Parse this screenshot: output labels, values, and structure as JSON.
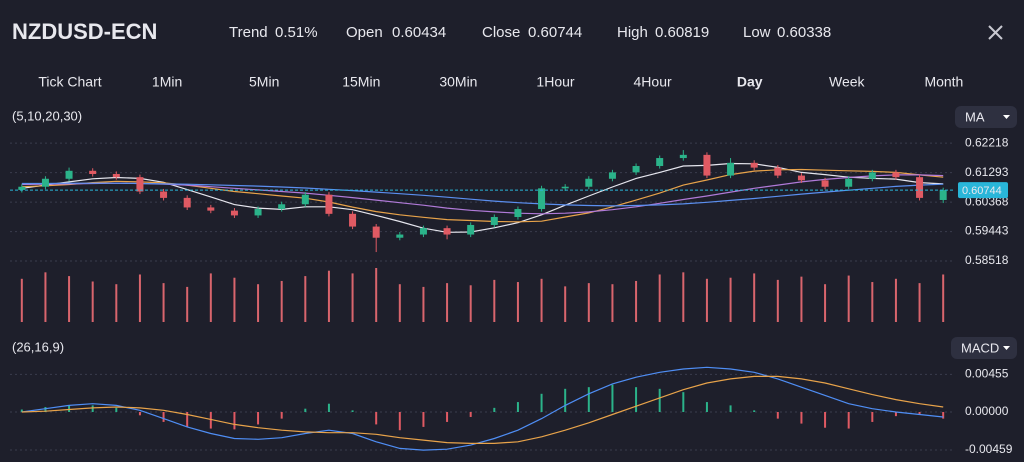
{
  "header": {
    "symbol": "NZDUSD-ECN",
    "stats": [
      {
        "label": "Trend",
        "value": "0.51%"
      },
      {
        "label": "Open",
        "value": "0.60434"
      },
      {
        "label": "Close",
        "value": "0.60744"
      },
      {
        "label": "High",
        "value": "0.60819"
      },
      {
        "label": "Low",
        "value": "0.60338"
      }
    ]
  },
  "tabs": [
    "Tick Chart",
    "1Min",
    "5Min",
    "15Min",
    "30Min",
    "1Hour",
    "4Hour",
    "Day",
    "Week",
    "Month"
  ],
  "active_tab": 7,
  "chart_data": [
    {
      "type": "candlestick",
      "label": "(5,10,20,30)",
      "indicator": "MA",
      "up_color": "#2bb38a",
      "down_color": "#e05a63",
      "ylim": [
        0.583,
        0.6263
      ],
      "yticks": [
        0.62218,
        0.61293,
        0.60368,
        0.59443,
        0.58518
      ],
      "grid": true,
      "last_price": 0.60744,
      "last_price_color": "#29b6d9",
      "open": [
        0.6075,
        0.6085,
        0.611,
        0.6135,
        0.6125,
        0.6115,
        0.607,
        0.605,
        0.602,
        0.601,
        0.5995,
        0.6015,
        0.603,
        0.606,
        0.6,
        0.596,
        0.5925,
        0.5935,
        0.5955,
        0.5935,
        0.5965,
        0.599,
        0.6015,
        0.608,
        0.6085,
        0.611,
        0.613,
        0.615,
        0.6175,
        0.6185,
        0.612,
        0.616,
        0.6145,
        0.612,
        0.6105,
        0.6085,
        0.611,
        0.613,
        0.6115,
        0.60434
      ],
      "high": [
        0.6093,
        0.6118,
        0.6145,
        0.6143,
        0.6133,
        0.6123,
        0.6078,
        0.6058,
        0.6028,
        0.6018,
        0.6023,
        0.6038,
        0.6068,
        0.6068,
        0.6008,
        0.5968,
        0.5943,
        0.5963,
        0.5963,
        0.5973,
        0.5998,
        0.6023,
        0.6088,
        0.6093,
        0.6118,
        0.6138,
        0.6158,
        0.6183,
        0.62,
        0.6193,
        0.6175,
        0.6168,
        0.6153,
        0.6128,
        0.6113,
        0.6118,
        0.6138,
        0.6138,
        0.6123,
        0.60819
      ],
      "low": [
        0.6067,
        0.6077,
        0.6102,
        0.6117,
        0.6107,
        0.6062,
        0.6042,
        0.6012,
        0.6002,
        0.5987,
        0.5987,
        0.6007,
        0.6022,
        0.5992,
        0.5952,
        0.588,
        0.5917,
        0.5927,
        0.592,
        0.5927,
        0.5957,
        0.5982,
        0.6007,
        0.6072,
        0.6077,
        0.6102,
        0.6122,
        0.6142,
        0.6167,
        0.6112,
        0.6112,
        0.6137,
        0.6112,
        0.6097,
        0.6077,
        0.6077,
        0.6102,
        0.6107,
        0.6042,
        0.60338
      ],
      "close": [
        0.6085,
        0.611,
        0.6135,
        0.6125,
        0.6115,
        0.607,
        0.605,
        0.602,
        0.601,
        0.5995,
        0.6015,
        0.603,
        0.606,
        0.6,
        0.596,
        0.5925,
        0.5935,
        0.5955,
        0.5935,
        0.5965,
        0.599,
        0.6015,
        0.608,
        0.6085,
        0.611,
        0.613,
        0.615,
        0.6175,
        0.6185,
        0.612,
        0.616,
        0.6145,
        0.612,
        0.6105,
        0.6085,
        0.611,
        0.613,
        0.6115,
        0.605,
        0.60744
      ],
      "series": [
        {
          "color": "#e6e6ee",
          "values": [
            0.608,
            0.609,
            0.61,
            0.611,
            0.6114,
            0.6111,
            0.6099,
            0.6076,
            0.6053,
            0.6029,
            0.6018,
            0.6014,
            0.6022,
            0.6022,
            0.6013,
            0.5995,
            0.5976,
            0.5955,
            0.5942,
            0.5943,
            0.5956,
            0.5972,
            0.5997,
            0.6027,
            0.6056,
            0.6084,
            0.6111,
            0.613,
            0.615,
            0.6152,
            0.6158,
            0.6157,
            0.6146,
            0.613,
            0.6123,
            0.6115,
            0.6111,
            0.6109,
            0.6098,
            0.6094
          ]
        },
        {
          "color": "#e8a34a",
          "values": [
            0.6085,
            0.6088,
            0.6092,
            0.6098,
            0.6102,
            0.61,
            0.6097,
            0.609,
            0.608,
            0.607,
            0.6063,
            0.6056,
            0.6049,
            0.6037,
            0.6021,
            0.6007,
            0.5997,
            0.5989,
            0.5982,
            0.5979,
            0.5976,
            0.5975,
            0.5977,
            0.599,
            0.6003,
            0.6022,
            0.6043,
            0.6065,
            0.609,
            0.6106,
            0.6123,
            0.6134,
            0.6138,
            0.6139,
            0.6137,
            0.6135,
            0.6133,
            0.613,
            0.6122,
            0.6115
          ]
        },
        {
          "color": "#b07ad8",
          "values": [
            0.6092,
            0.6093,
            0.6094,
            0.6095,
            0.6096,
            0.6095,
            0.6093,
            0.609,
            0.6085,
            0.608,
            0.6075,
            0.607,
            0.6065,
            0.6058,
            0.6051,
            0.6043,
            0.6035,
            0.6027,
            0.6018,
            0.6011,
            0.6006,
            0.6002,
            0.6,
            0.6002,
            0.6006,
            0.6013,
            0.6022,
            0.6033,
            0.6045,
            0.6056,
            0.6068,
            0.608,
            0.609,
            0.61,
            0.6108,
            0.6114,
            0.6119,
            0.6122,
            0.6122,
            0.612
          ]
        },
        {
          "color": "#5b8ff0",
          "values": [
            0.6095,
            0.6095,
            0.6096,
            0.6096,
            0.6096,
            0.6095,
            0.6094,
            0.6093,
            0.6091,
            0.6089,
            0.6087,
            0.6084,
            0.6081,
            0.6077,
            0.6073,
            0.6068,
            0.6063,
            0.6058,
            0.6052,
            0.6046,
            0.604,
            0.6035,
            0.6031,
            0.6028,
            0.6026,
            0.6025,
            0.6026,
            0.6028,
            0.6031,
            0.6036,
            0.6042,
            0.6048,
            0.6055,
            0.6062,
            0.6068,
            0.6074,
            0.608,
            0.6086,
            0.609,
            0.6093
          ]
        }
      ],
      "volume": [
        80,
        92,
        85,
        75,
        70,
        88,
        72,
        65,
        90,
        82,
        70,
        76,
        85,
        95,
        90,
        100,
        70,
        65,
        72,
        68,
        78,
        74,
        80,
        66,
        72,
        70,
        76,
        88,
        92,
        80,
        82,
        90,
        78,
        84,
        70,
        86,
        74,
        80,
        72,
        88
      ],
      "volume_color": "#d9656d",
      "volume_ylim": [
        0,
        100
      ]
    },
    {
      "type": "macd",
      "label": "(26,16,9)",
      "indicator": "MACD",
      "ylim": [
        -0.0058,
        0.0058
      ],
      "yticks": [
        0.00455,
        {
          "value": 0,
          "label": "0.00000"
        },
        -0.00459
      ],
      "grid": true,
      "up_color": "#2bb38a",
      "down_color": "#e05a63",
      "histogram": [
        0.0003,
        0.0006,
        0.0008,
        0.0008,
        0.0005,
        -0.0004,
        -0.0012,
        -0.0018,
        -0.002,
        -0.0021,
        -0.0015,
        -0.0008,
        0.0004,
        0.001,
        0.0002,
        -0.0015,
        -0.0022,
        -0.0018,
        -0.0012,
        -0.0006,
        0.0005,
        0.0012,
        0.0022,
        0.0028,
        0.003,
        0.0033,
        0.003,
        0.0028,
        0.0024,
        0.0012,
        0.0008,
        0.0002,
        -0.0008,
        -0.0014,
        -0.0019,
        -0.002,
        -0.0012,
        -0.0005,
        -0.0003,
        -0.0008
      ],
      "series": [
        {
          "color": "#4f8ef5",
          "values": [
            0.0,
            0.0004,
            0.0008,
            0.001,
            0.0008,
            0.0002,
            -0.0008,
            -0.0018,
            -0.0026,
            -0.0032,
            -0.0033,
            -0.0031,
            -0.0026,
            -0.0022,
            -0.0026,
            -0.0036,
            -0.0044,
            -0.0046,
            -0.0045,
            -0.004,
            -0.0032,
            -0.0022,
            -0.0008,
            0.0008,
            0.0022,
            0.0034,
            0.0042,
            0.0048,
            0.0052,
            0.0054,
            0.0052,
            0.0048,
            0.004,
            0.003,
            0.002,
            0.001,
            0.0004,
            0.0,
            -0.0003,
            -0.0006
          ]
        },
        {
          "color": "#e8a34a",
          "values": [
            0.0,
            0.0001,
            0.0003,
            0.0005,
            0.0006,
            0.0005,
            0.0002,
            -0.0003,
            -0.0009,
            -0.0015,
            -0.0019,
            -0.0022,
            -0.0024,
            -0.0025,
            -0.0025,
            -0.0027,
            -0.0031,
            -0.0034,
            -0.0037,
            -0.0038,
            -0.0038,
            -0.0036,
            -0.003,
            -0.0022,
            -0.0013,
            -0.0003,
            0.0007,
            0.0017,
            0.0027,
            0.0035,
            0.004,
            0.0043,
            0.0043,
            0.004,
            0.0035,
            0.0028,
            0.0021,
            0.0015,
            0.001,
            0.0006
          ]
        }
      ]
    }
  ]
}
